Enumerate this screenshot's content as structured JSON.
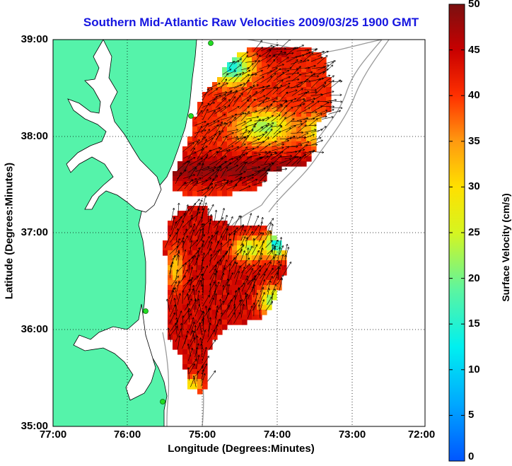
{
  "title": "Southern Mid-Atlantic Raw Velocities 2009/03/25 1900 GMT",
  "x_axis_label": "Longitude (Degrees:Minutes)",
  "y_axis_label": "Latitude (Degrees:Minutes)",
  "colorbar_label": "Surface Velocity (cm/s)",
  "x_ticks": [
    "77:00",
    "76:00",
    "75:00",
    "74:00",
    "73:00",
    "72:00"
  ],
  "y_ticks": [
    "39:00",
    "38:00",
    "37:00",
    "36:00",
    "35:00"
  ],
  "colorbar_ticks": [
    "50",
    "45",
    "40",
    "35",
    "30",
    "25",
    "20",
    "15",
    "10",
    "5",
    "0"
  ],
  "colors": {
    "land": "#55f3aa",
    "title": "#1515e0",
    "grid": "#000000",
    "bathymetry": "#9a9a9a",
    "station": "#22dd22"
  },
  "map_extent": {
    "lon": [
      -77,
      -72
    ],
    "lat": [
      35,
      39
    ],
    "velocity_range_cm_s": [
      0,
      50
    ]
  },
  "chart_data": {
    "type": "heatmap",
    "title": "Southern Mid-Atlantic Raw Velocities 2009/03/25 1900 GMT",
    "xlabel": "Longitude (Degrees:Minutes)",
    "ylabel": "Latitude (Degrees:Minutes)",
    "colorbar_label": "Surface Velocity (cm/s)",
    "xlim": [
      -77,
      -72
    ],
    "ylim": [
      35,
      39
    ],
    "clim": [
      0,
      50
    ],
    "grid": true
  }
}
